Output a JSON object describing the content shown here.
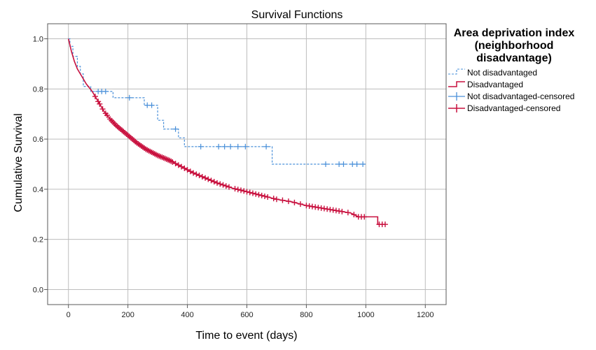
{
  "chart_data": {
    "type": "line",
    "subtype": "kaplan-meier-step",
    "title": "Survival Functions",
    "xlabel": "Time to event (days)",
    "ylabel": "Cumulative Survival",
    "xlim": [
      -70,
      1270
    ],
    "ylim": [
      -0.06,
      1.06
    ],
    "xticks": [
      0,
      200,
      400,
      600,
      800,
      1000,
      1200
    ],
    "xtick_labels": [
      "0",
      "200",
      "400",
      "600",
      "800",
      "1000",
      "1200"
    ],
    "yticks": [
      0.0,
      0.2,
      0.4,
      0.6,
      0.8,
      1.0
    ],
    "ytick_labels": [
      "0.0",
      "0.2",
      "0.4",
      "0.6",
      "0.8",
      "1.0"
    ],
    "grid": true,
    "legend": {
      "title_lines": [
        "Area deprivation index",
        "(neighborhood",
        "disadvantage)"
      ],
      "placement": "right",
      "entries": [
        "Not disadvantaged",
        "Disadvantaged",
        "Not disadvantaged-censored",
        "Disadvantaged-censored"
      ]
    },
    "colors": {
      "not_disadvantaged": "#4a90d9",
      "disadvantaged": "#c8103e",
      "grid": "#bdbdbd",
      "frame": "#5a5a5a"
    },
    "series": [
      {
        "name": "Not disadvantaged",
        "style": "dashed",
        "steps": [
          [
            0,
            1.0
          ],
          [
            5,
            0.97
          ],
          [
            15,
            0.93
          ],
          [
            30,
            0.89
          ],
          [
            40,
            0.86
          ],
          [
            50,
            0.81
          ],
          [
            75,
            0.79
          ],
          [
            150,
            0.765
          ],
          [
            255,
            0.735
          ],
          [
            300,
            0.675
          ],
          [
            320,
            0.64
          ],
          [
            370,
            0.605
          ],
          [
            390,
            0.57
          ],
          [
            685,
            0.5
          ],
          [
            1000,
            0.5
          ]
        ]
      },
      {
        "name": "Disadvantaged",
        "style": "solid",
        "curve": [
          [
            0,
            1.0
          ],
          [
            10,
            0.95
          ],
          [
            20,
            0.91
          ],
          [
            30,
            0.88
          ],
          [
            45,
            0.85
          ],
          [
            60,
            0.82
          ],
          [
            80,
            0.79
          ],
          [
            100,
            0.75
          ],
          [
            120,
            0.71
          ],
          [
            140,
            0.68
          ],
          [
            160,
            0.655
          ],
          [
            180,
            0.635
          ],
          [
            200,
            0.615
          ],
          [
            230,
            0.585
          ],
          [
            260,
            0.56
          ],
          [
            300,
            0.535
          ],
          [
            340,
            0.515
          ],
          [
            380,
            0.49
          ],
          [
            420,
            0.465
          ],
          [
            460,
            0.445
          ],
          [
            500,
            0.425
          ],
          [
            550,
            0.405
          ],
          [
            600,
            0.39
          ],
          [
            650,
            0.375
          ],
          [
            700,
            0.36
          ],
          [
            750,
            0.35
          ],
          [
            800,
            0.335
          ],
          [
            850,
            0.325
          ],
          [
            900,
            0.315
          ],
          [
            950,
            0.305
          ],
          [
            975,
            0.29
          ],
          [
            1000,
            0.29
          ],
          [
            1040,
            0.29
          ],
          [
            1040,
            0.26
          ],
          [
            1065,
            0.26
          ]
        ]
      },
      {
        "name": "Not disadvantaged-censored",
        "marker": "plus",
        "points": [
          [
            100,
            0.79
          ],
          [
            112,
            0.79
          ],
          [
            125,
            0.79
          ],
          [
            205,
            0.765
          ],
          [
            265,
            0.735
          ],
          [
            280,
            0.735
          ],
          [
            360,
            0.64
          ],
          [
            445,
            0.57
          ],
          [
            505,
            0.57
          ],
          [
            525,
            0.57
          ],
          [
            545,
            0.57
          ],
          [
            570,
            0.57
          ],
          [
            595,
            0.57
          ],
          [
            665,
            0.57
          ],
          [
            865,
            0.5
          ],
          [
            910,
            0.5
          ],
          [
            925,
            0.5
          ],
          [
            955,
            0.5
          ],
          [
            970,
            0.5
          ],
          [
            990,
            0.5
          ]
        ]
      },
      {
        "name": "Disadvantaged-censored",
        "marker": "plus",
        "x_points": [
          90,
          100,
          105,
          115,
          125,
          130,
          140,
          145,
          150,
          155,
          160,
          165,
          170,
          175,
          180,
          185,
          190,
          195,
          200,
          205,
          210,
          215,
          220,
          225,
          230,
          235,
          240,
          245,
          250,
          255,
          260,
          265,
          270,
          275,
          280,
          285,
          290,
          295,
          300,
          305,
          310,
          315,
          320,
          325,
          330,
          335,
          340,
          345,
          350,
          360,
          370,
          380,
          390,
          400,
          410,
          420,
          430,
          440,
          450,
          460,
          470,
          480,
          490,
          500,
          510,
          520,
          530,
          540,
          560,
          570,
          580,
          590,
          600,
          610,
          620,
          630,
          640,
          650,
          660,
          670,
          690,
          700,
          720,
          740,
          760,
          780,
          800,
          810,
          820,
          830,
          840,
          850,
          860,
          870,
          880,
          890,
          900,
          910,
          920,
          940,
          960,
          975,
          985,
          995,
          1045,
          1055,
          1065
        ]
      }
    ]
  }
}
